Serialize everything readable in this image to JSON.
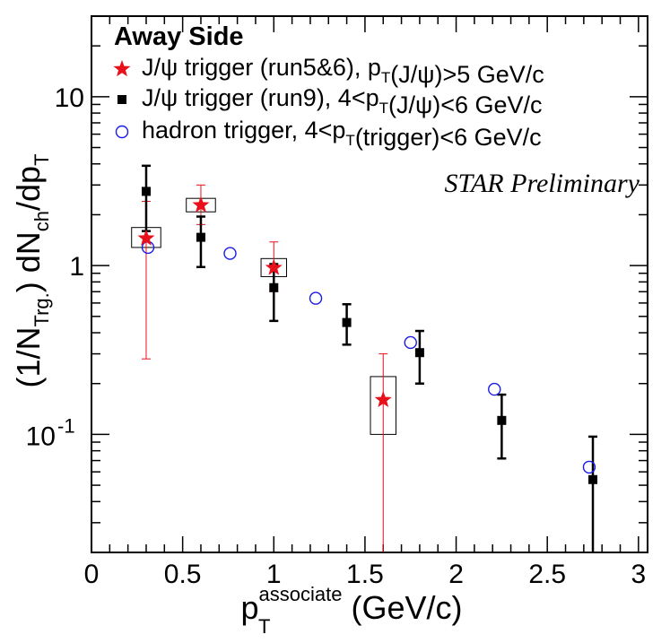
{
  "chart_data": {
    "type": "scatter",
    "title": "",
    "legend_title": "Away Side",
    "annotation": "STAR Preliminary",
    "xlim": [
      0,
      3.05
    ],
    "ylim": [
      0.02,
      30
    ],
    "ylog": true,
    "xlabel": {
      "main": "p",
      "sub": "T",
      "sup": "associate",
      "rest": " (GeV/c)"
    },
    "ylabel": {
      "p1": "(1/N",
      "s1": "Trg.",
      "p2": ") dN",
      "s2": "ch",
      "p3": "/dp",
      "s3": "T"
    },
    "xticks": [
      {
        "value": 0,
        "label": "0"
      },
      {
        "value": 0.5,
        "label": "0.5"
      },
      {
        "value": 1,
        "label": "1"
      },
      {
        "value": 1.5,
        "label": "1.5"
      },
      {
        "value": 2,
        "label": "2"
      },
      {
        "value": 2.5,
        "label": "2.5"
      },
      {
        "value": 3,
        "label": "3"
      }
    ],
    "yticks": [
      {
        "value": 0.1,
        "base": "10",
        "exp": "-1"
      },
      {
        "value": 1,
        "base": "1",
        "exp": ""
      },
      {
        "value": 10,
        "base": "10",
        "exp": ""
      }
    ],
    "legend": [
      {
        "marker": "star",
        "color": "#e8101a",
        "parts": [
          {
            "t": "J/ψ trigger (run5&6), p"
          },
          {
            "s": "T"
          },
          {
            "t": "(J/ψ)>5 GeV/c"
          }
        ]
      },
      {
        "marker": "square",
        "color": "#000000",
        "parts": [
          {
            "t": "J/ψ trigger (run9), 4<p"
          },
          {
            "s": "T"
          },
          {
            "t": "(J/ψ)<6 GeV/c"
          }
        ]
      },
      {
        "marker": "circle",
        "color": "#1a1ae6",
        "parts": [
          {
            "t": "hadron trigger, 4<p"
          },
          {
            "s": "T"
          },
          {
            "t": "(trigger)<6 GeV/c"
          }
        ]
      }
    ],
    "series": [
      {
        "name": "J/ψ trigger (run5&6)",
        "marker": "star",
        "color": "#e8101a",
        "points": [
          {
            "x": 0.3,
            "y": 1.45,
            "ylo": 0.28,
            "yhi": 2.4,
            "sys_lo": 1.28,
            "sys_hi": 1.68,
            "sys_hw": 0.08
          },
          {
            "x": 0.6,
            "y": 2.28,
            "ylo": 1.75,
            "yhi": 3.0,
            "sys_lo": 2.08,
            "sys_hi": 2.5,
            "sys_hw": 0.08
          },
          {
            "x": 1.0,
            "y": 0.97,
            "ylo": 0.7,
            "yhi": 1.38,
            "sys_lo": 0.86,
            "sys_hi": 1.1,
            "sys_hw": 0.07
          },
          {
            "x": 1.6,
            "y": 0.16,
            "ylo": 0.02,
            "yhi": 0.3,
            "sys_lo": 0.1,
            "sys_hi": 0.22,
            "sys_hw": 0.07
          }
        ]
      },
      {
        "name": "J/ψ trigger (run9)",
        "marker": "square",
        "color": "#000000",
        "points": [
          {
            "x": 0.3,
            "y": 2.75,
            "ylo": 1.6,
            "yhi": 3.9
          },
          {
            "x": 0.6,
            "y": 1.47,
            "ylo": 0.98,
            "yhi": 1.95
          },
          {
            "x": 1.0,
            "y": 0.74,
            "ylo": 0.47,
            "yhi": 1.02
          },
          {
            "x": 1.4,
            "y": 0.46,
            "ylo": 0.34,
            "yhi": 0.59
          },
          {
            "x": 1.8,
            "y": 0.305,
            "ylo": 0.2,
            "yhi": 0.41
          },
          {
            "x": 2.25,
            "y": 0.121,
            "ylo": 0.072,
            "yhi": 0.172
          },
          {
            "x": 2.75,
            "y": 0.054,
            "ylo": 0.02,
            "yhi": 0.097
          }
        ]
      },
      {
        "name": "hadron trigger",
        "marker": "circle",
        "color": "#1a1ae6",
        "points": [
          {
            "x": 0.31,
            "y": 1.28
          },
          {
            "x": 0.76,
            "y": 1.18
          },
          {
            "x": 1.23,
            "y": 0.64
          },
          {
            "x": 1.75,
            "y": 0.35
          },
          {
            "x": 2.21,
            "y": 0.185
          },
          {
            "x": 2.73,
            "y": 0.064
          }
        ]
      }
    ]
  }
}
